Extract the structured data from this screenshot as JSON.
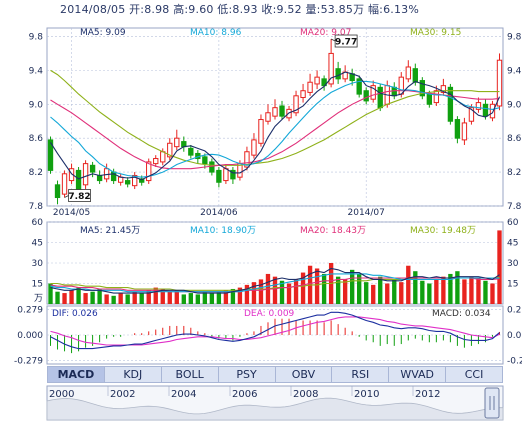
{
  "header": {
    "info_line": "2014/08/05 开:8.98 高:9.60 低:8.93 收:9.52 量:53.85万 幅:6.13%"
  },
  "colors": {
    "up": "#e8231f",
    "down": "#10a010",
    "ma5": "#1c2f6a",
    "ma10": "#14a8d8",
    "ma20": "#e0307a",
    "ma30": "#8fb11a",
    "dif": "#1c2fa0",
    "dea": "#e030c8"
  },
  "chart_data": [
    {
      "type": "candlestick",
      "panel": "price",
      "ylim": [
        7.8,
        9.9
      ],
      "ytick_labels": [
        "9.8",
        "9.4",
        "9.0",
        "8.6",
        "8.2",
        "7.8"
      ],
      "xtick_labels": [
        "2014/05",
        "2014/06",
        "2014/07"
      ],
      "legend": [
        {
          "label": "MA5: 9.09",
          "color": "#1c2f6a"
        },
        {
          "label": "MA10: 8.96",
          "color": "#14a8d8"
        },
        {
          "label": "MA20: 9.07",
          "color": "#e0307a"
        },
        {
          "label": "MA30: 9.15",
          "color": "#8fb11a"
        }
      ],
      "annotations": [
        {
          "label": "9.77",
          "kind": "max",
          "index": 40
        },
        {
          "label": "7.82",
          "kind": "min",
          "index": 2
        }
      ],
      "x": [
        "d1",
        "d2",
        "d3",
        "d4",
        "d5",
        "d6",
        "d7",
        "d8",
        "d9",
        "d10",
        "d11",
        "d12",
        "d13",
        "d14",
        "d15",
        "d16",
        "d17",
        "d18",
        "d19",
        "d20",
        "d21",
        "d22",
        "d23",
        "d24",
        "d25",
        "d26",
        "d27",
        "d28",
        "d29",
        "d30",
        "d31",
        "d32",
        "d33",
        "d34",
        "d35",
        "d36",
        "d37",
        "d38",
        "d39",
        "d40",
        "d41",
        "d42",
        "d43",
        "d44",
        "d45",
        "d46",
        "d47",
        "d48",
        "d49",
        "d50",
        "d51",
        "d52",
        "d53",
        "d54",
        "d55",
        "d56",
        "d57",
        "d58",
        "d59",
        "d60",
        "d61",
        "d62",
        "d63",
        "d64",
        "d65"
      ],
      "open": [
        8.58,
        8.05,
        7.94,
        8.1,
        8.22,
        8.05,
        8.28,
        8.16,
        8.12,
        8.2,
        8.08,
        8.1,
        8.04,
        8.12,
        8.1,
        8.3,
        8.32,
        8.38,
        8.5,
        8.56,
        8.48,
        8.42,
        8.38,
        8.32,
        8.22,
        8.1,
        8.22,
        8.14,
        8.26,
        8.4,
        8.54,
        8.8,
        8.86,
        8.98,
        8.84,
        8.9,
        9.08,
        9.14,
        9.24,
        9.3,
        9.24,
        9.42,
        9.3,
        9.36,
        9.3,
        9.16,
        9.06,
        9.2,
        9.0,
        9.2,
        9.12,
        9.3,
        9.42,
        9.28,
        9.12,
        9.02,
        9.14,
        9.2,
        8.82,
        8.58,
        8.8,
        8.94,
        9.0,
        8.84,
        8.98
      ],
      "close": [
        8.22,
        7.9,
        8.18,
        8.24,
        7.98,
        8.3,
        8.2,
        8.1,
        8.24,
        8.1,
        8.14,
        8.06,
        8.16,
        8.08,
        8.32,
        8.36,
        8.44,
        8.54,
        8.6,
        8.5,
        8.4,
        8.36,
        8.3,
        8.2,
        8.08,
        8.24,
        8.12,
        8.3,
        8.44,
        8.58,
        8.82,
        8.9,
        8.96,
        8.86,
        8.94,
        9.1,
        9.16,
        9.26,
        9.32,
        9.22,
        9.6,
        9.3,
        9.38,
        9.28,
        9.12,
        9.04,
        9.22,
        8.96,
        9.22,
        9.1,
        9.32,
        9.44,
        9.26,
        9.1,
        9.0,
        9.16,
        9.22,
        8.8,
        8.6,
        8.78,
        8.96,
        9.02,
        8.86,
        9.0,
        9.52
      ],
      "high": [
        8.62,
        8.1,
        8.22,
        8.3,
        8.26,
        8.34,
        8.32,
        8.22,
        8.3,
        8.24,
        8.18,
        8.14,
        8.2,
        8.16,
        8.36,
        8.4,
        8.48,
        8.6,
        8.7,
        8.62,
        8.52,
        8.46,
        8.42,
        8.36,
        8.26,
        8.28,
        8.26,
        8.34,
        8.5,
        8.66,
        8.88,
        9.0,
        9.06,
        9.04,
        8.98,
        9.16,
        9.24,
        9.36,
        9.4,
        9.34,
        9.77,
        9.5,
        9.46,
        9.42,
        9.34,
        9.2,
        9.28,
        9.24,
        9.28,
        9.26,
        9.38,
        9.52,
        9.48,
        9.32,
        9.16,
        9.22,
        9.3,
        9.24,
        8.86,
        8.84,
        9.0,
        9.08,
        9.06,
        9.04,
        9.6
      ],
      "low": [
        8.18,
        7.82,
        7.9,
        8.06,
        7.94,
        8.0,
        8.14,
        8.06,
        8.08,
        8.06,
        8.04,
        8.02,
        8.0,
        8.04,
        8.06,
        8.26,
        8.28,
        8.34,
        8.46,
        8.44,
        8.36,
        8.3,
        8.24,
        8.16,
        8.02,
        8.06,
        8.06,
        8.1,
        8.22,
        8.36,
        8.5,
        8.76,
        8.82,
        8.82,
        8.8,
        8.86,
        9.02,
        9.1,
        9.18,
        9.16,
        9.2,
        9.24,
        9.26,
        9.22,
        9.08,
        9.0,
        9.02,
        8.92,
        8.96,
        9.06,
        9.08,
        9.26,
        9.22,
        9.06,
        8.96,
        8.98,
        9.1,
        8.76,
        8.54,
        8.52,
        8.76,
        8.9,
        8.82,
        8.8,
        8.93
      ],
      "ma5": [
        8.55,
        8.42,
        8.3,
        8.18,
        8.12,
        8.15,
        8.18,
        8.16,
        8.17,
        8.18,
        8.14,
        8.13,
        8.14,
        8.11,
        8.15,
        8.19,
        8.26,
        8.33,
        8.45,
        8.5,
        8.51,
        8.48,
        8.45,
        8.38,
        8.29,
        8.24,
        8.19,
        8.19,
        8.24,
        8.34,
        8.45,
        8.61,
        8.74,
        8.82,
        8.9,
        8.93,
        8.98,
        9.07,
        9.15,
        9.21,
        9.31,
        9.34,
        9.38,
        9.36,
        9.33,
        9.22,
        9.19,
        9.13,
        9.11,
        9.1,
        9.12,
        9.21,
        9.27,
        9.24,
        9.22,
        9.19,
        9.15,
        9.12,
        9.04,
        8.98,
        8.94,
        8.87,
        8.85,
        8.9,
        9.09
      ],
      "ma10": [
        8.85,
        8.78,
        8.7,
        8.62,
        8.55,
        8.45,
        8.38,
        8.3,
        8.25,
        8.2,
        8.18,
        8.16,
        8.15,
        8.14,
        8.15,
        8.17,
        8.2,
        8.24,
        8.29,
        8.32,
        8.35,
        8.38,
        8.4,
        8.41,
        8.4,
        8.37,
        8.33,
        8.3,
        8.28,
        8.3,
        8.33,
        8.39,
        8.47,
        8.56,
        8.66,
        8.75,
        8.84,
        8.93,
        9.01,
        9.08,
        9.14,
        9.18,
        9.22,
        9.25,
        9.27,
        9.27,
        9.26,
        9.24,
        9.22,
        9.2,
        9.17,
        9.17,
        9.16,
        9.14,
        9.12,
        9.11,
        9.11,
        9.08,
        9.04,
        8.99,
        8.97,
        8.96,
        8.95,
        8.94,
        8.96
      ],
      "ma20": [
        9.05,
        9.0,
        8.95,
        8.9,
        8.84,
        8.78,
        8.72,
        8.66,
        8.6,
        8.54,
        8.48,
        8.43,
        8.38,
        8.34,
        8.3,
        8.27,
        8.25,
        8.24,
        8.24,
        8.24,
        8.24,
        8.25,
        8.26,
        8.27,
        8.28,
        8.29,
        8.29,
        8.3,
        8.31,
        8.32,
        8.34,
        8.36,
        8.4,
        8.44,
        8.49,
        8.54,
        8.6,
        8.66,
        8.72,
        8.78,
        8.84,
        8.9,
        8.95,
        9.0,
        9.04,
        9.08,
        9.11,
        9.13,
        9.15,
        9.16,
        9.16,
        9.16,
        9.15,
        9.14,
        9.13,
        9.12,
        9.11,
        9.1,
        9.09,
        9.08,
        9.07,
        9.06,
        9.06,
        9.06,
        9.07
      ],
      "ma30": [
        9.4,
        9.35,
        9.28,
        9.2,
        9.12,
        9.05,
        8.98,
        8.91,
        8.85,
        8.79,
        8.73,
        8.67,
        8.62,
        8.57,
        8.52,
        8.48,
        8.44,
        8.4,
        8.37,
        8.34,
        8.32,
        8.3,
        8.29,
        8.28,
        8.28,
        8.28,
        8.28,
        8.28,
        8.29,
        8.3,
        8.31,
        8.32,
        8.34,
        8.36,
        8.39,
        8.42,
        8.46,
        8.5,
        8.54,
        8.58,
        8.63,
        8.68,
        8.73,
        8.78,
        8.83,
        8.88,
        8.92,
        8.96,
        9.0,
        9.03,
        9.06,
        9.09,
        9.11,
        9.13,
        9.14,
        9.15,
        9.16,
        9.16,
        9.16,
        9.16,
        9.16,
        9.15,
        9.15,
        9.15,
        9.15
      ]
    },
    {
      "type": "bar",
      "panel": "volume",
      "unit": "万",
      "ylim": [
        0,
        60
      ],
      "ytick_labels": [
        "60",
        "45",
        "30",
        "15"
      ],
      "legend": [
        {
          "label": "MA5: 21.45万",
          "color": "#1c2f6a"
        },
        {
          "label": "MA10: 18.90万",
          "color": "#14a8d8"
        },
        {
          "label": "MA20: 18.43万",
          "color": "#e0307a"
        },
        {
          "label": "MA30: 19.48万",
          "color": "#8fb11a"
        }
      ],
      "values": [
        15,
        9,
        8,
        10,
        12,
        8,
        9,
        11,
        7,
        6,
        8,
        7,
        9,
        8,
        10,
        12,
        11,
        9,
        10,
        7,
        8,
        7,
        9,
        8,
        9,
        10,
        11,
        12,
        14,
        16,
        18,
        22,
        20,
        17,
        15,
        18,
        23,
        28,
        26,
        22,
        30,
        20,
        18,
        25,
        22,
        16,
        14,
        20,
        15,
        18,
        16,
        28,
        24,
        17,
        15,
        18,
        20,
        22,
        24,
        18,
        20,
        19,
        17,
        15,
        53.85
      ],
      "ma5": [
        12,
        11,
        10,
        10,
        11,
        10,
        10,
        10,
        9,
        8,
        8,
        8,
        8,
        8,
        8,
        9,
        10,
        10,
        10,
        10,
        9,
        8,
        8,
        8,
        8,
        8,
        9,
        10,
        11,
        13,
        14,
        16,
        18,
        19,
        18,
        18,
        19,
        22,
        24,
        23,
        26,
        25,
        23,
        23,
        23,
        20,
        18,
        18,
        17,
        17,
        17,
        19,
        20,
        20,
        19,
        20,
        19,
        19,
        20,
        20,
        20,
        20,
        19,
        18,
        21.45
      ],
      "ma10": [
        13,
        12,
        12,
        11,
        11,
        11,
        10,
        10,
        10,
        10,
        10,
        9,
        9,
        9,
        9,
        9,
        9,
        9,
        9,
        9,
        9,
        9,
        9,
        9,
        9,
        9,
        9,
        9,
        10,
        11,
        12,
        13,
        14,
        15,
        16,
        17,
        18,
        19,
        20,
        21,
        22,
        22,
        22,
        22,
        22,
        22,
        21,
        21,
        20,
        19,
        18,
        18,
        18,
        18,
        18,
        18,
        18,
        18,
        19,
        19,
        19,
        19,
        19,
        19,
        18.9
      ],
      "ma20": [
        14,
        13,
        13,
        13,
        12,
        12,
        12,
        11,
        11,
        11,
        11,
        10,
        10,
        10,
        10,
        10,
        10,
        9,
        9,
        9,
        9,
        9,
        9,
        9,
        9,
        9,
        9,
        9,
        10,
        10,
        10,
        11,
        11,
        12,
        12,
        13,
        14,
        15,
        16,
        17,
        17,
        18,
        18,
        19,
        19,
        19,
        19,
        19,
        19,
        19,
        19,
        19,
        19,
        19,
        19,
        19,
        19,
        19,
        19,
        19,
        19,
        18,
        18,
        18,
        18.43
      ],
      "ma30": [
        15,
        15,
        14,
        14,
        14,
        13,
        13,
        13,
        12,
        12,
        12,
        12,
        11,
        11,
        11,
        11,
        11,
        11,
        10,
        10,
        10,
        10,
        10,
        10,
        10,
        10,
        10,
        10,
        11,
        11,
        11,
        11,
        12,
        12,
        12,
        13,
        13,
        14,
        14,
        15,
        15,
        16,
        16,
        17,
        17,
        17,
        18,
        18,
        18,
        18,
        18,
        18,
        19,
        19,
        19,
        19,
        19,
        19,
        19,
        19,
        19,
        19,
        19,
        19,
        19.48
      ]
    },
    {
      "type": "macd",
      "panel": "macd",
      "ylim": [
        -0.32,
        0.32
      ],
      "ytick_labels": [
        "0.279",
        "0.000",
        "-0.279"
      ],
      "legend": [
        {
          "label": "DIF: 0.026",
          "color": "#1c2fa0"
        },
        {
          "label": "DEA: 0.009",
          "color": "#e030c8"
        },
        {
          "label": "MACD: 0.034",
          "color": "#333333"
        }
      ],
      "dif": [
        -0.02,
        -0.06,
        -0.1,
        -0.13,
        -0.15,
        -0.15,
        -0.15,
        -0.14,
        -0.13,
        -0.12,
        -0.12,
        -0.11,
        -0.1,
        -0.1,
        -0.08,
        -0.06,
        -0.04,
        -0.02,
        0.0,
        0.01,
        0.01,
        0.0,
        -0.01,
        -0.03,
        -0.05,
        -0.06,
        -0.07,
        -0.06,
        -0.04,
        -0.02,
        0.02,
        0.06,
        0.1,
        0.12,
        0.14,
        0.16,
        0.18,
        0.2,
        0.22,
        0.22,
        0.25,
        0.25,
        0.24,
        0.22,
        0.19,
        0.16,
        0.14,
        0.11,
        0.1,
        0.08,
        0.07,
        0.08,
        0.08,
        0.07,
        0.05,
        0.04,
        0.04,
        0.02,
        -0.02,
        -0.05,
        -0.06,
        -0.06,
        -0.06,
        -0.04,
        0.026
      ],
      "dea": [
        0.04,
        0.02,
        -0.01,
        -0.03,
        -0.06,
        -0.08,
        -0.09,
        -0.1,
        -0.11,
        -0.11,
        -0.11,
        -0.11,
        -0.11,
        -0.11,
        -0.1,
        -0.09,
        -0.08,
        -0.07,
        -0.05,
        -0.04,
        -0.03,
        -0.02,
        -0.02,
        -0.02,
        -0.03,
        -0.04,
        -0.04,
        -0.05,
        -0.05,
        -0.04,
        -0.03,
        -0.01,
        0.01,
        0.03,
        0.05,
        0.08,
        0.1,
        0.12,
        0.14,
        0.15,
        0.17,
        0.19,
        0.2,
        0.2,
        0.2,
        0.19,
        0.18,
        0.17,
        0.15,
        0.14,
        0.12,
        0.11,
        0.1,
        0.1,
        0.09,
        0.08,
        0.07,
        0.06,
        0.04,
        0.02,
        0.0,
        -0.01,
        -0.02,
        -0.03,
        0.009
      ],
      "macd": [
        -0.12,
        -0.16,
        -0.18,
        -0.2,
        -0.18,
        -0.14,
        -0.12,
        -0.08,
        -0.04,
        -0.02,
        -0.02,
        0.0,
        0.02,
        0.02,
        0.04,
        0.06,
        0.08,
        0.1,
        0.1,
        0.1,
        0.08,
        0.04,
        0.02,
        -0.02,
        -0.04,
        -0.04,
        -0.06,
        -0.02,
        0.02,
        0.04,
        0.1,
        0.14,
        0.18,
        0.18,
        0.18,
        0.16,
        0.16,
        0.16,
        0.16,
        0.14,
        0.16,
        0.12,
        0.08,
        0.04,
        -0.02,
        -0.06,
        -0.08,
        -0.12,
        -0.1,
        -0.12,
        -0.1,
        -0.06,
        -0.04,
        -0.06,
        -0.08,
        -0.08,
        -0.06,
        -0.08,
        -0.12,
        -0.14,
        -0.12,
        -0.1,
        -0.08,
        -0.02,
        0.034
      ]
    }
  ],
  "indicator_tabs": [
    "MACD",
    "KDJ",
    "BOLL",
    "PSY",
    "OBV",
    "RSI",
    "WVAD",
    "CCI"
  ],
  "active_tab": "MACD",
  "timeline": {
    "year_labels": [
      "2000",
      "2002",
      "2004",
      "2006",
      "2008",
      "2010",
      "2012"
    ]
  }
}
